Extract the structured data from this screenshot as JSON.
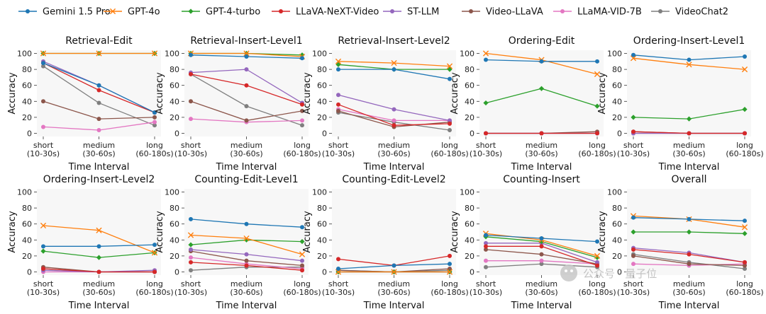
{
  "legend": [
    {
      "name": "Gemini 1.5 Pro",
      "color": "#1f77b4",
      "marker": "circle"
    },
    {
      "name": "GPT-4o",
      "color": "#ff7f0e",
      "marker": "x"
    },
    {
      "name": "GPT-4-turbo",
      "color": "#2ca02c",
      "marker": "diamond"
    },
    {
      "name": "LLaVA-NeXT-Video",
      "color": "#d62728",
      "marker": "circle"
    },
    {
      "name": "ST-LLM",
      "color": "#9467bd",
      "marker": "circle"
    },
    {
      "name": "Video-LLaVA",
      "color": "#8c564b",
      "marker": "circle"
    },
    {
      "name": "LLaMA-VID-7B",
      "color": "#e377c2",
      "marker": "circle"
    },
    {
      "name": "VideoChat2",
      "color": "#7f7f7f",
      "marker": "circle"
    }
  ],
  "watermark": "公众号 · 量子位",
  "chart_data": [
    {
      "type": "line",
      "title": "Retrieval-Edit",
      "xlabel": "Time Interval",
      "ylabel": "Accuracy",
      "categories": [
        [
          "short",
          "(10-30s)"
        ],
        [
          "medium",
          "(30-60s)"
        ],
        [
          "long",
          "(60-180s)"
        ]
      ],
      "yticks": [
        0,
        20,
        40,
        60,
        80,
        100
      ],
      "ylim": [
        -4,
        104
      ],
      "series": [
        {
          "name": "Gemini 1.5 Pro",
          "values": [
            88,
            60,
            26
          ]
        },
        {
          "name": "GPT-4o",
          "values": [
            100,
            100,
            100
          ]
        },
        {
          "name": "GPT-4-turbo",
          "values": [
            100,
            100,
            100
          ]
        },
        {
          "name": "LLaVA-NeXT-Video",
          "values": [
            88,
            54,
            26
          ]
        },
        {
          "name": "ST-LLM",
          "values": [
            90,
            60,
            26
          ]
        },
        {
          "name": "Video-LLaVA",
          "values": [
            40,
            18,
            20
          ]
        },
        {
          "name": "LLaMA-VID-7B",
          "values": [
            8,
            4,
            14
          ]
        },
        {
          "name": "VideoChat2",
          "values": [
            84,
            38,
            10
          ]
        }
      ]
    },
    {
      "type": "line",
      "title": "Retrieval-Insert-Level1",
      "xlabel": "Time Interval",
      "ylabel": "Accuracy",
      "categories": [
        [
          "short",
          "(10-30s)"
        ],
        [
          "medium",
          "(30-60s)"
        ],
        [
          "long",
          "(60-180s)"
        ]
      ],
      "yticks": [
        0,
        20,
        40,
        60,
        80,
        100
      ],
      "ylim": [
        -4,
        104
      ],
      "series": [
        {
          "name": "Gemini 1.5 Pro",
          "values": [
            98,
            96,
            94
          ]
        },
        {
          "name": "GPT-4o",
          "values": [
            100,
            100,
            96
          ]
        },
        {
          "name": "GPT-4-turbo",
          "values": [
            100,
            100,
            98
          ]
        },
        {
          "name": "LLaVA-NeXT-Video",
          "values": [
            74,
            60,
            36
          ]
        },
        {
          "name": "ST-LLM",
          "values": [
            76,
            80,
            38
          ]
        },
        {
          "name": "Video-LLaVA",
          "values": [
            40,
            16,
            28
          ]
        },
        {
          "name": "LLaMA-VID-7B",
          "values": [
            18,
            14,
            16
          ]
        },
        {
          "name": "VideoChat2",
          "values": [
            74,
            34,
            10
          ]
        }
      ]
    },
    {
      "type": "line",
      "title": "Retrieval-Insert-Level2",
      "xlabel": "Time Interval",
      "ylabel": "Accuracy",
      "categories": [
        [
          "short",
          "(10-30s)"
        ],
        [
          "medium",
          "(30-60s)"
        ],
        [
          "long",
          "(60-180s)"
        ]
      ],
      "yticks": [
        0,
        20,
        40,
        60,
        80,
        100
      ],
      "ylim": [
        -4,
        104
      ],
      "series": [
        {
          "name": "Gemini 1.5 Pro",
          "values": [
            80,
            80,
            68
          ]
        },
        {
          "name": "GPT-4o",
          "values": [
            90,
            88,
            84
          ]
        },
        {
          "name": "GPT-4-turbo",
          "values": [
            86,
            80,
            80
          ]
        },
        {
          "name": "LLaVA-NeXT-Video",
          "values": [
            36,
            10,
            12
          ]
        },
        {
          "name": "ST-LLM",
          "values": [
            48,
            30,
            16
          ]
        },
        {
          "name": "Video-LLaVA",
          "values": [
            28,
            8,
            14
          ]
        },
        {
          "name": "LLaMA-VID-7B",
          "values": [
            30,
            16,
            16
          ]
        },
        {
          "name": "VideoChat2",
          "values": [
            26,
            14,
            4
          ]
        }
      ]
    },
    {
      "type": "line",
      "title": "Ordering-Edit",
      "xlabel": "Time Interval",
      "ylabel": "Accuracy",
      "categories": [
        [
          "short",
          "(10-30s)"
        ],
        [
          "medium",
          "(30-60s)"
        ],
        [
          "long",
          "(60-180s)"
        ]
      ],
      "yticks": [
        0,
        20,
        40,
        60,
        80,
        100
      ],
      "ylim": [
        -4,
        104
      ],
      "series": [
        {
          "name": "Gemini 1.5 Pro",
          "values": [
            92,
            90,
            90
          ]
        },
        {
          "name": "GPT-4o",
          "values": [
            100,
            92,
            74
          ]
        },
        {
          "name": "GPT-4-turbo",
          "values": [
            38,
            56,
            34
          ]
        },
        {
          "name": "LLaVA-NeXT-Video",
          "values": [
            0,
            0,
            0
          ]
        },
        {
          "name": "ST-LLM",
          "values": [
            0,
            0,
            0
          ]
        },
        {
          "name": "Video-LLaVA",
          "values": [
            0,
            0,
            2
          ]
        },
        {
          "name": "LLaMA-VID-7B",
          "values": [
            0,
            0,
            0
          ]
        },
        {
          "name": "VideoChat2",
          "values": [
            0,
            0,
            0
          ]
        }
      ]
    },
    {
      "type": "line",
      "title": "Ordering-Insert-Level1",
      "xlabel": "Time Interval",
      "ylabel": "Accuracy",
      "categories": [
        [
          "short",
          "(10-30s)"
        ],
        [
          "medium",
          "(30-60s)"
        ],
        [
          "long",
          "(60-180s)"
        ]
      ],
      "yticks": [
        0,
        20,
        40,
        60,
        80,
        100
      ],
      "ylim": [
        -4,
        104
      ],
      "series": [
        {
          "name": "Gemini 1.5 Pro",
          "values": [
            98,
            92,
            96
          ]
        },
        {
          "name": "GPT-4o",
          "values": [
            94,
            86,
            80
          ]
        },
        {
          "name": "GPT-4-turbo",
          "values": [
            20,
            18,
            30
          ]
        },
        {
          "name": "LLaVA-NeXT-Video",
          "values": [
            2,
            0,
            0
          ]
        },
        {
          "name": "ST-LLM",
          "values": [
            0,
            0,
            0
          ]
        },
        {
          "name": "Video-LLaVA",
          "values": [
            2,
            0,
            0
          ]
        },
        {
          "name": "LLaMA-VID-7B",
          "values": [
            0,
            0,
            0
          ]
        },
        {
          "name": "VideoChat2",
          "values": [
            0,
            0,
            0
          ]
        }
      ]
    },
    {
      "type": "line",
      "title": "Ordering-Insert-Level2",
      "xlabel": "Time Interval",
      "ylabel": "Accuracy",
      "categories": [
        [
          "short",
          "(10-30s)"
        ],
        [
          "medium",
          "(30-60s)"
        ],
        [
          "long",
          "(60-180s)"
        ]
      ],
      "yticks": [
        0,
        20,
        40,
        60,
        80,
        100
      ],
      "ylim": [
        -4,
        104
      ],
      "series": [
        {
          "name": "Gemini 1.5 Pro",
          "values": [
            32,
            32,
            34
          ]
        },
        {
          "name": "GPT-4o",
          "values": [
            58,
            52,
            24
          ]
        },
        {
          "name": "GPT-4-turbo",
          "values": [
            26,
            18,
            24
          ]
        },
        {
          "name": "LLaVA-NeXT-Video",
          "values": [
            4,
            0,
            0
          ]
        },
        {
          "name": "ST-LLM",
          "values": [
            2,
            0,
            2
          ]
        },
        {
          "name": "Video-LLaVA",
          "values": [
            6,
            0,
            0
          ]
        },
        {
          "name": "LLaMA-VID-7B",
          "values": [
            0,
            0,
            0
          ]
        },
        {
          "name": "VideoChat2",
          "values": [
            4,
            0,
            0
          ]
        }
      ]
    },
    {
      "type": "line",
      "title": "Counting-Edit-Level1",
      "xlabel": "Time Interval",
      "ylabel": "Accuracy",
      "categories": [
        [
          "short",
          "(10-30s)"
        ],
        [
          "medium",
          "(30-60s)"
        ],
        [
          "long",
          "(60-180s)"
        ]
      ],
      "yticks": [
        0,
        20,
        40,
        60,
        80,
        100
      ],
      "ylim": [
        -4,
        104
      ],
      "series": [
        {
          "name": "Gemini 1.5 Pro",
          "values": [
            66,
            60,
            56
          ]
        },
        {
          "name": "GPT-4o",
          "values": [
            46,
            42,
            22
          ]
        },
        {
          "name": "GPT-4-turbo",
          "values": [
            34,
            40,
            38
          ]
        },
        {
          "name": "LLaVA-NeXT-Video",
          "values": [
            12,
            8,
            2
          ]
        },
        {
          "name": "ST-LLM",
          "values": [
            28,
            22,
            14
          ]
        },
        {
          "name": "Video-LLaVA",
          "values": [
            26,
            14,
            8
          ]
        },
        {
          "name": "LLaMA-VID-7B",
          "values": [
            18,
            10,
            4
          ]
        },
        {
          "name": "VideoChat2",
          "values": [
            2,
            6,
            6
          ]
        }
      ]
    },
    {
      "type": "line",
      "title": "Counting-Edit-Level2",
      "xlabel": "Time Interval",
      "ylabel": "Accuracy",
      "categories": [
        [
          "short",
          "(10-30s)"
        ],
        [
          "medium",
          "(30-60s)"
        ],
        [
          "long",
          "(60-180s)"
        ]
      ],
      "yticks": [
        0,
        20,
        40,
        60,
        80,
        100
      ],
      "ylim": [
        -4,
        104
      ],
      "series": [
        {
          "name": "Gemini 1.5 Pro",
          "values": [
            4,
            8,
            10
          ]
        },
        {
          "name": "GPT-4o",
          "values": [
            0,
            0,
            0
          ]
        },
        {
          "name": "GPT-4-turbo",
          "values": [
            0,
            0,
            0
          ]
        },
        {
          "name": "LLaVA-NeXT-Video",
          "values": [
            16,
            8,
            20
          ]
        },
        {
          "name": "ST-LLM",
          "values": [
            0,
            0,
            0
          ]
        },
        {
          "name": "Video-LLaVA",
          "values": [
            2,
            0,
            4
          ]
        },
        {
          "name": "LLaMA-VID-7B",
          "values": [
            0,
            0,
            0
          ]
        },
        {
          "name": "VideoChat2",
          "values": [
            2,
            0,
            2
          ]
        }
      ]
    },
    {
      "type": "line",
      "title": "Counting-Insert",
      "xlabel": "Time Interval",
      "ylabel": "Accuracy",
      "categories": [
        [
          "short",
          "(10-30s)"
        ],
        [
          "medium",
          "(30-60s)"
        ],
        [
          "long",
          "(60-180s)"
        ]
      ],
      "yticks": [
        0,
        20,
        40,
        60,
        80,
        100
      ],
      "ylim": [
        -4,
        104
      ],
      "series": [
        {
          "name": "Gemini 1.5 Pro",
          "values": [
            46,
            42,
            38
          ]
        },
        {
          "name": "GPT-4o",
          "values": [
            48,
            40,
            20
          ]
        },
        {
          "name": "GPT-4-turbo",
          "values": [
            44,
            38,
            18
          ]
        },
        {
          "name": "LLaVA-NeXT-Video",
          "values": [
            32,
            32,
            8
          ]
        },
        {
          "name": "ST-LLM",
          "values": [
            36,
            36,
            12
          ]
        },
        {
          "name": "Video-LLaVA",
          "values": [
            28,
            22,
            10
          ]
        },
        {
          "name": "LLaMA-VID-7B",
          "values": [
            14,
            14,
            10
          ]
        },
        {
          "name": "VideoChat2",
          "values": [
            6,
            10,
            6
          ]
        }
      ]
    },
    {
      "type": "line",
      "title": "Overall",
      "xlabel": "Time Interval",
      "ylabel": "Accuracy",
      "categories": [
        [
          "short",
          "(10-30s)"
        ],
        [
          "medium",
          "(30-60s)"
        ],
        [
          "long",
          "(60-180s)"
        ]
      ],
      "yticks": [
        0,
        20,
        40,
        60,
        80,
        100
      ],
      "ylim": [
        -4,
        104
      ],
      "series": [
        {
          "name": "Gemini 1.5 Pro",
          "values": [
            68,
            66,
            64
          ]
        },
        {
          "name": "GPT-4o",
          "values": [
            70,
            66,
            56
          ]
        },
        {
          "name": "GPT-4-turbo",
          "values": [
            50,
            50,
            48
          ]
        },
        {
          "name": "LLaVA-NeXT-Video",
          "values": [
            28,
            22,
            12
          ]
        },
        {
          "name": "ST-LLM",
          "values": [
            30,
            24,
            12
          ]
        },
        {
          "name": "Video-LLaVA",
          "values": [
            20,
            10,
            8
          ]
        },
        {
          "name": "LLaMA-VID-7B",
          "values": [
            10,
            8,
            10
          ]
        },
        {
          "name": "VideoChat2",
          "values": [
            22,
            12,
            4
          ]
        }
      ]
    }
  ]
}
